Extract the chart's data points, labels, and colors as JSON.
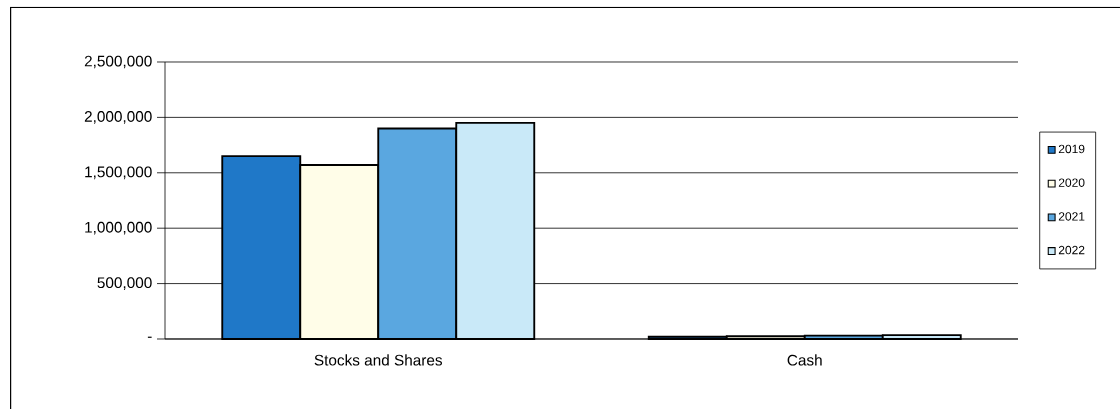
{
  "chart_data": {
    "type": "bar",
    "categories": [
      "Stocks and Shares",
      "Cash"
    ],
    "series": [
      {
        "name": "2019",
        "color": "#1f78c8",
        "values": [
          1650000,
          20000
        ]
      },
      {
        "name": "2020",
        "color": "#fffde8",
        "values": [
          1570000,
          25000
        ]
      },
      {
        "name": "2021",
        "color": "#5aa7e0",
        "values": [
          1900000,
          30000
        ]
      },
      {
        "name": "2022",
        "color": "#c9e9f8",
        "values": [
          1950000,
          35000
        ]
      }
    ],
    "ylim": [
      0,
      2500000
    ],
    "yticks": [
      {
        "value": 0,
        "label": "-"
      },
      {
        "value": 500000,
        "label": "500,000"
      },
      {
        "value": 1000000,
        "label": "1,000,000"
      },
      {
        "value": 1500000,
        "label": "1,500,000"
      },
      {
        "value": 2000000,
        "label": "2,000,000"
      },
      {
        "value": 2500000,
        "label": "2,500,000"
      }
    ],
    "grid": "y",
    "legend": "right"
  }
}
